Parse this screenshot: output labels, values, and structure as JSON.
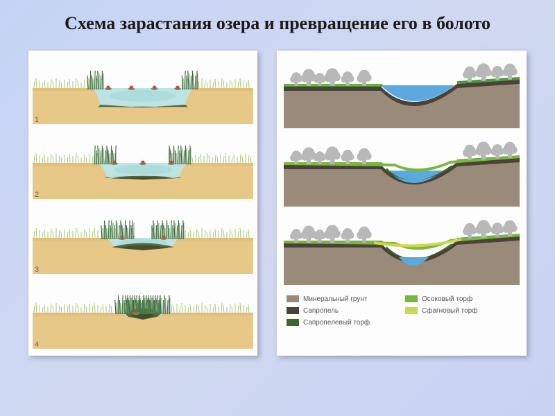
{
  "title": "Схема зарастания озера и превращение его в болото",
  "colors": {
    "bg1": "#c5d4f5",
    "sand": "#e8c886",
    "sandDark": "#d4af6b",
    "water": "#bde4e4",
    "waterDeep": "#9dd4d4",
    "sediment1": "#5a6640",
    "sediment2": "#3d4a2a",
    "reed": "#5a8a5a",
    "reedDark": "#3a6a3a",
    "grass": "#a8c878",
    "lily": "#d2403c",
    "sky": "#ffffff",
    "mineral": "#9a8a7a",
    "sapropel": "#4a4238",
    "sapropelPeat": "#3a6a2a",
    "sedgePeat": "#7ab83a",
    "sphagnumPeat": "#c8d850",
    "treeGray": "#b8b8b8",
    "waterBlue": "#5aaae0",
    "greenTop": "#4a9a3a"
  },
  "leftStages": [
    {
      "label": "1",
      "waterWidth": 150,
      "waterDepth": 28,
      "sedimentDepth": 2,
      "reedSpread": 18,
      "lilies": 4
    },
    {
      "label": "2",
      "waterWidth": 132,
      "waterDepth": 24,
      "sedimentDepth": 8,
      "reedSpread": 28,
      "lilies": 3
    },
    {
      "label": "3",
      "waterWidth": 110,
      "waterDepth": 18,
      "sedimentDepth": 16,
      "reedSpread": 42,
      "lilies": 2
    },
    {
      "label": "4",
      "waterWidth": 70,
      "waterDepth": 10,
      "sedimentDepth": 26,
      "reedSpread": 60,
      "lilies": 1
    }
  ],
  "rightStages": [
    {
      "waterLevel": 38,
      "peatY": null,
      "sphY": null
    },
    {
      "waterLevel": 48,
      "peatY": 55,
      "sphY": null
    },
    {
      "waterLevel": 60,
      "peatY": 50,
      "sphY": 44
    }
  ],
  "legend": [
    {
      "swatchKey": "mineral",
      "label": "Минеральный грунт"
    },
    {
      "swatchKey": "sedgePeat",
      "label": "Осоковый торф"
    },
    {
      "swatchKey": "sapropel",
      "label": "Сапропель"
    },
    {
      "swatchKey": "sphagnumPeat",
      "label": "Сфагновый торф"
    },
    {
      "swatchKey": "sapropelPeat",
      "label": "Сапропелевый торф"
    }
  ]
}
